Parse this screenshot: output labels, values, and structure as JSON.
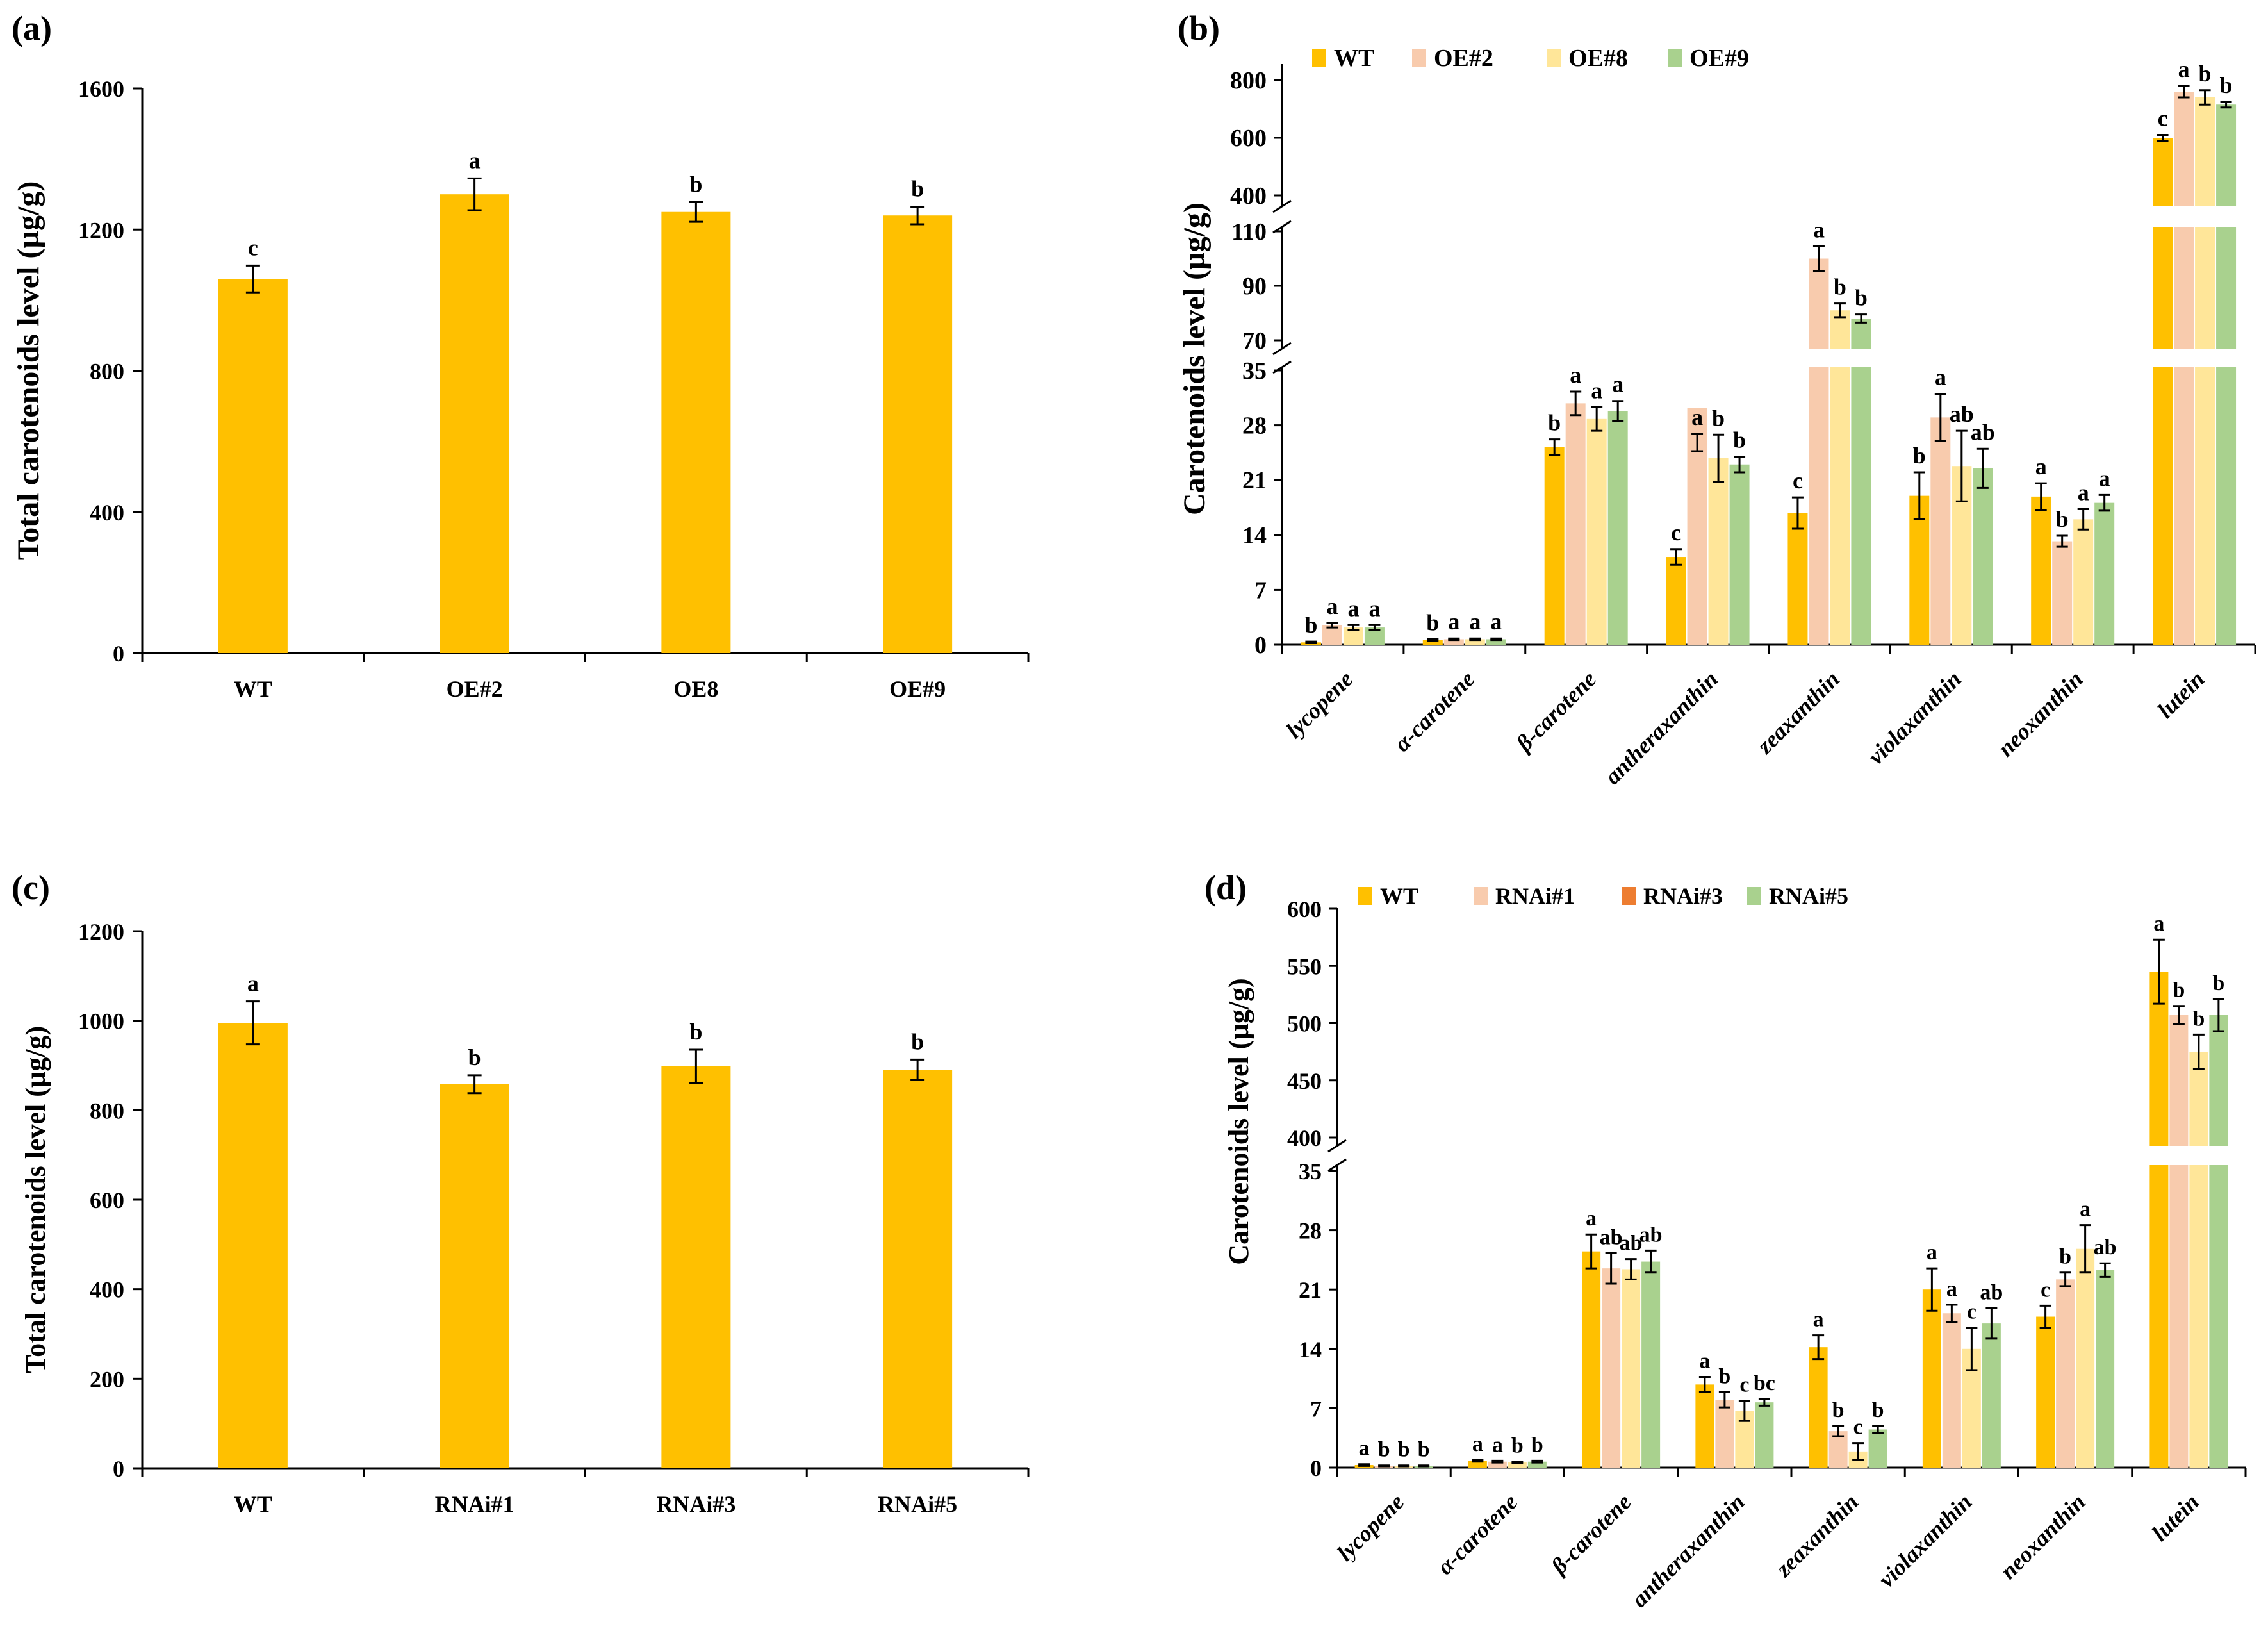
{
  "panels": [
    {
      "id": "a",
      "label": "(a)"
    },
    {
      "id": "b",
      "label": "(b)"
    },
    {
      "id": "c",
      "label": "(c)"
    },
    {
      "id": "d",
      "label": "(d)"
    }
  ],
  "chart_data": [
    {
      "id": "a",
      "type": "bar",
      "title": "",
      "ylabel": "Total carotenoids level (µg/g)",
      "xlabel": "",
      "ylim": [
        0,
        1600
      ],
      "yticks": [
        0,
        400,
        800,
        1200,
        1600
      ],
      "categories": [
        "WT",
        "OE#2",
        "OE8",
        "OE#9"
      ],
      "values": [
        1060,
        1300,
        1250,
        1240
      ],
      "errors": [
        38,
        45,
        28,
        25
      ],
      "letters": [
        "c",
        "a",
        "b",
        "b"
      ],
      "color": "#FFC000"
    },
    {
      "id": "b",
      "type": "bar",
      "title": "",
      "ylabel": "Carotenoids level (µg/g)",
      "xlabel": "",
      "legend_position": "top",
      "axis_breaks": [
        [
          35,
          70
        ],
        [
          110,
          400
        ]
      ],
      "yticks": [
        0,
        7,
        14,
        21,
        28,
        35,
        70,
        90,
        110,
        400,
        600,
        800
      ],
      "categories": [
        "lycopene",
        "α-carotene",
        "β-carotene",
        "antheraxanthin",
        "zeaxanthin",
        "violaxanthin",
        "neoxanthin",
        "lutein"
      ],
      "series": [
        {
          "name": "WT",
          "color": "#FFC000",
          "values": [
            0.3,
            0.6,
            25.2,
            11.2,
            16.8,
            19.0,
            18.9,
            600
          ],
          "errors": [
            0.1,
            0.1,
            1.0,
            1.0,
            2.0,
            3.0,
            1.7,
            10
          ],
          "letters": [
            "b",
            "b",
            "b",
            "c",
            "c",
            "b",
            "a",
            "c"
          ]
        },
        {
          "name": "OE#2",
          "color": "#F8CBAD",
          "values": [
            2.5,
            0.7,
            30.8,
            30.2,
            100,
            29.0,
            13.2,
            760
          ],
          "errors": [
            0.3,
            0.1,
            1.5,
            5.5,
            4.5,
            3.0,
            0.7,
            20
          ],
          "letters": [
            "a",
            "a",
            "a",
            "a",
            "a",
            "a",
            "b",
            "a"
          ]
        },
        {
          "name": "OE#8",
          "color": "#FFE699",
          "values": [
            2.2,
            0.7,
            28.8,
            23.8,
            81,
            22.8,
            16.0,
            740
          ],
          "errors": [
            0.3,
            0.1,
            1.5,
            3.0,
            2.5,
            4.5,
            1.3,
            25
          ],
          "letters": [
            "a",
            "a",
            "a",
            "b",
            "b",
            "ab",
            "a",
            "b"
          ]
        },
        {
          "name": "OE#9",
          "color": "#A9D18E",
          "values": [
            2.2,
            0.7,
            29.8,
            23.0,
            78,
            22.5,
            18.1,
            715
          ],
          "errors": [
            0.3,
            0.1,
            1.3,
            1.0,
            1.5,
            2.5,
            1.0,
            10
          ],
          "letters": [
            "a",
            "a",
            "a",
            "b",
            "b",
            "ab",
            "a",
            "b"
          ]
        }
      ]
    },
    {
      "id": "c",
      "type": "bar",
      "title": "",
      "ylabel": "Total carotenoids level (µg/g)",
      "xlabel": "",
      "ylim": [
        0,
        1200
      ],
      "yticks": [
        0,
        200,
        400,
        600,
        800,
        1000,
        1200
      ],
      "categories": [
        "WT",
        "RNAi#1",
        "RNAi#3",
        "RNAi#5"
      ],
      "values": [
        995,
        858,
        898,
        890
      ],
      "errors": [
        48,
        20,
        37,
        23
      ],
      "letters": [
        "a",
        "b",
        "b",
        "b"
      ],
      "color": "#FFC000"
    },
    {
      "id": "d",
      "type": "bar",
      "title": "",
      "ylabel": "Carotenoids level (µg/g)",
      "xlabel": "",
      "legend_position": "top",
      "axis_breaks": [
        [
          35,
          400
        ]
      ],
      "yticks": [
        0,
        7,
        14,
        21,
        28,
        35,
        400,
        450,
        500,
        550,
        600
      ],
      "categories": [
        "lycopene",
        "α-carotene",
        "β-carotene",
        "antheraxanthin",
        "zeaxanthin",
        "violaxanthin",
        "neoxanthin",
        "lutein"
      ],
      "series": [
        {
          "name": "WT",
          "color": "#FFC000",
          "values": [
            0.3,
            0.8,
            25.5,
            9.8,
            14.2,
            21.0,
            17.8,
            545
          ],
          "errors": [
            0.1,
            0.1,
            2.0,
            0.9,
            1.4,
            2.5,
            1.3,
            28
          ],
          "letters": [
            "a",
            "a",
            "a",
            "a",
            "a",
            "a",
            "c",
            "a"
          ]
        },
        {
          "name": "RNAi#1",
          "color": "#F8CBAD",
          "values": [
            0.2,
            0.7,
            23.5,
            8.0,
            4.3,
            18.2,
            22.2,
            507
          ],
          "errors": [
            0.05,
            0.1,
            1.8,
            0.9,
            0.6,
            1.0,
            0.8,
            8
          ],
          "letters": [
            "b",
            "a",
            "ab",
            "b",
            "b",
            "a",
            "b",
            "b"
          ]
        },
        {
          "name": "RNAi#3",
          "color": "#FFE699",
          "values": [
            0.2,
            0.6,
            23.4,
            6.7,
            1.9,
            14.0,
            25.8,
            475
          ],
          "errors": [
            0.05,
            0.1,
            1.2,
            1.2,
            1.0,
            2.5,
            2.8,
            15
          ],
          "letters": [
            "b",
            "b",
            "ab",
            "c",
            "c",
            "c",
            "a",
            "b"
          ]
        },
        {
          "name": "RNAi#5",
          "color": "#A9D18E",
          "values": [
            0.2,
            0.7,
            24.3,
            7.7,
            4.5,
            17.0,
            23.3,
            507
          ],
          "errors": [
            0.05,
            0.1,
            1.3,
            0.4,
            0.4,
            1.8,
            0.8,
            14
          ],
          "letters": [
            "b",
            "b",
            "ab",
            "bc",
            "b",
            "ab",
            "ab",
            "b"
          ]
        }
      ],
      "legend_entries": [
        {
          "name": "WT",
          "color": "#FFC000"
        },
        {
          "name": "RNAi#1",
          "color": "#F8CBAD"
        },
        {
          "name": "RNAi#3",
          "color": "#ED7D31"
        },
        {
          "name": "RNAi#5",
          "color": "#A9D18E"
        }
      ]
    }
  ]
}
